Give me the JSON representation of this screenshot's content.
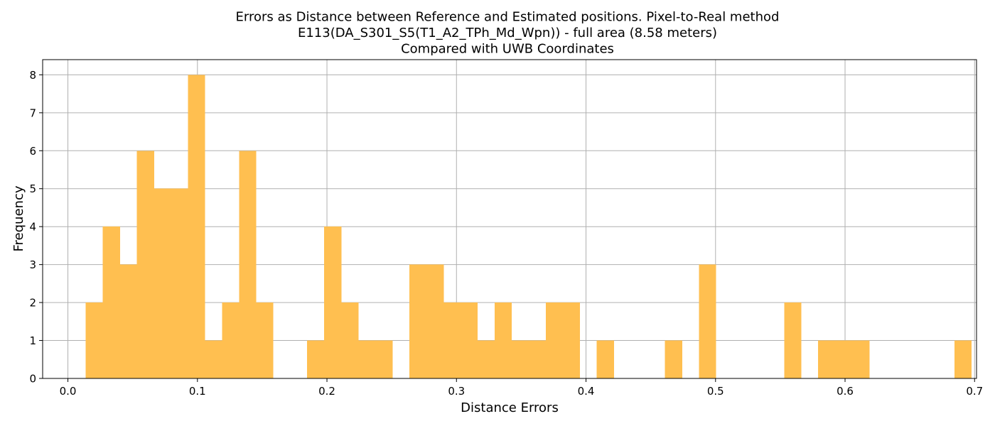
{
  "chart_data": {
    "type": "bar",
    "title_lines": [
      "Errors as Distance between Reference and Estimated positions. Pixel-to-Real method",
      "E113(DA_S301_S5(T1_A2_TPh_Md_Wpn)) - full area (8.58 meters)",
      "Compared with UWB Coordinates"
    ],
    "xlabel": "Distance Errors",
    "ylabel": "Frequency",
    "xlim": [
      -0.0195,
      0.7015
    ],
    "ylim": [
      0,
      8.4
    ],
    "grid": true,
    "bar_color": "#FFBF50",
    "x_ticks": [
      0.0,
      0.1,
      0.2,
      0.3,
      0.4,
      0.5,
      0.6,
      0.7
    ],
    "x_tick_labels": [
      "0.0",
      "0.1",
      "0.2",
      "0.3",
      "0.4",
      "0.5",
      "0.6",
      "0.7"
    ],
    "y_ticks": [
      0,
      1,
      2,
      3,
      4,
      5,
      6,
      7,
      8
    ],
    "y_tick_labels": [
      "0",
      "1",
      "2",
      "3",
      "4",
      "5",
      "6",
      "7",
      "8"
    ],
    "bin_start": 0.0138,
    "bin_width": 0.01315,
    "counts": [
      2,
      4,
      3,
      6,
      5,
      5,
      8,
      1,
      2,
      6,
      2,
      0,
      0,
      1,
      4,
      2,
      1,
      1,
      0,
      3,
      3,
      2,
      2,
      1,
      2,
      1,
      1,
      2,
      2,
      0,
      1,
      0,
      0,
      0,
      1,
      0,
      3,
      0,
      0,
      0,
      0,
      2,
      0,
      1,
      1,
      1,
      0,
      0,
      0,
      0,
      0,
      1
    ]
  }
}
